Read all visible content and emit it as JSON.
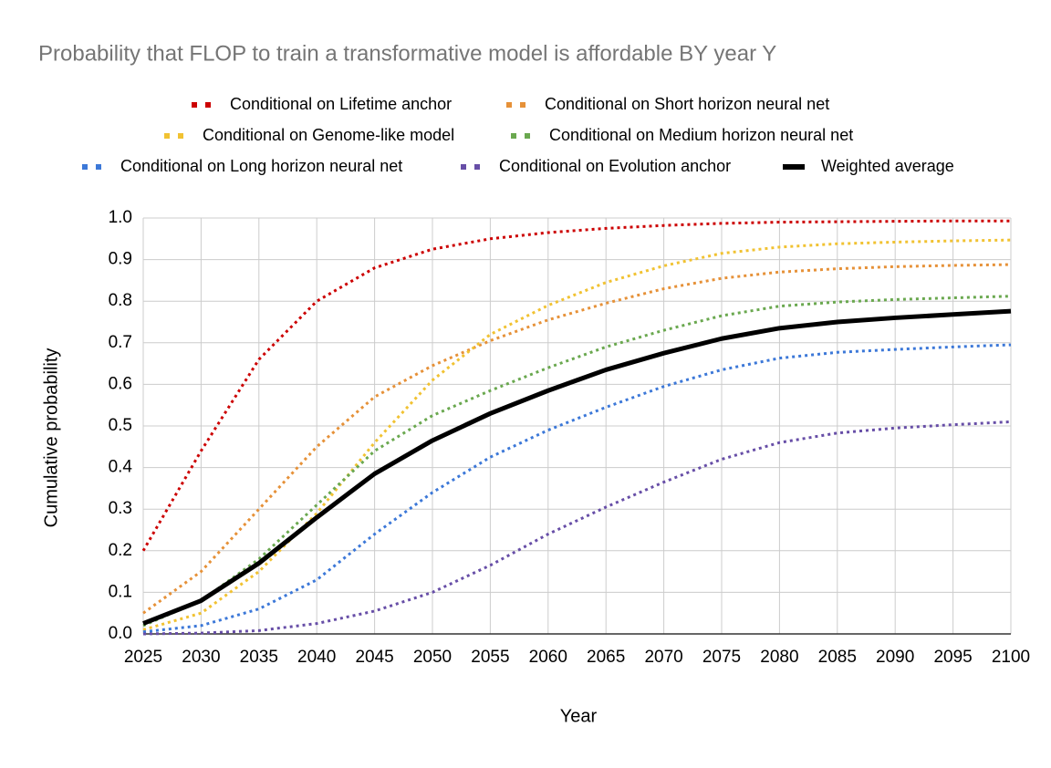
{
  "chart_data": {
    "type": "line",
    "title": "Probability that FLOP to train a transformative model is affordable BY year Y",
    "x_label": "Year",
    "y_label": "Cumulative probability",
    "x": [
      2025,
      2030,
      2035,
      2040,
      2045,
      2050,
      2055,
      2060,
      2065,
      2070,
      2075,
      2080,
      2085,
      2090,
      2095,
      2100
    ],
    "series": [
      {
        "name": "Conditional on Lifetime anchor",
        "color": "#cc0000",
        "line_style": "dotted",
        "values": [
          0.2,
          0.44,
          0.66,
          0.8,
          0.88,
          0.925,
          0.95,
          0.965,
          0.975,
          0.982,
          0.987,
          0.99,
          0.991,
          0.992,
          0.993,
          0.993
        ]
      },
      {
        "name": "Conditional on Short horizon neural net",
        "color": "#e69138",
        "line_style": "dotted",
        "values": [
          0.05,
          0.15,
          0.3,
          0.45,
          0.57,
          0.645,
          0.705,
          0.755,
          0.795,
          0.83,
          0.855,
          0.87,
          0.878,
          0.883,
          0.886,
          0.888
        ]
      },
      {
        "name": "Conditional on Genome-like model",
        "color": "#f1c232",
        "line_style": "dotted",
        "values": [
          0.01,
          0.05,
          0.15,
          0.29,
          0.46,
          0.61,
          0.72,
          0.79,
          0.845,
          0.885,
          0.915,
          0.93,
          0.938,
          0.942,
          0.945,
          0.947
        ]
      },
      {
        "name": "Conditional on Medium horizon neural net",
        "color": "#6aa84f",
        "line_style": "dotted",
        "values": [
          0.02,
          0.08,
          0.18,
          0.31,
          0.44,
          0.525,
          0.585,
          0.64,
          0.69,
          0.73,
          0.765,
          0.788,
          0.798,
          0.804,
          0.808,
          0.812
        ]
      },
      {
        "name": "Conditional on Long horizon neural net",
        "color": "#3c78d8",
        "line_style": "dotted",
        "values": [
          0.005,
          0.02,
          0.06,
          0.13,
          0.24,
          0.34,
          0.425,
          0.49,
          0.545,
          0.595,
          0.635,
          0.663,
          0.677,
          0.684,
          0.69,
          0.695
        ]
      },
      {
        "name": "Conditional on Evolution anchor",
        "color": "#674ea7",
        "line_style": "dotted",
        "values": [
          0,
          0.002,
          0.008,
          0.025,
          0.055,
          0.1,
          0.165,
          0.24,
          0.305,
          0.365,
          0.42,
          0.46,
          0.483,
          0.495,
          0.503,
          0.51
        ]
      },
      {
        "name": "Weighted average",
        "color": "#000000",
        "line_style": "solid",
        "values": [
          0.025,
          0.08,
          0.17,
          0.28,
          0.385,
          0.465,
          0.53,
          0.585,
          0.635,
          0.675,
          0.71,
          0.735,
          0.75,
          0.76,
          0.768,
          0.776
        ]
      }
    ],
    "xlim": [
      2025,
      2100
    ],
    "xticks": [
      2025,
      2030,
      2035,
      2040,
      2045,
      2050,
      2055,
      2060,
      2065,
      2070,
      2075,
      2080,
      2085,
      2090,
      2095,
      2100
    ],
    "ylim": [
      0,
      1
    ],
    "yticks": [
      {
        "value": 0,
        "label": "0.0"
      },
      0.1,
      0.2,
      0.3,
      0.4,
      0.5,
      0.6,
      0.7,
      0.8,
      0.9,
      {
        "value": 1,
        "label": "1.0"
      }
    ],
    "grid": true,
    "legend": "top"
  }
}
